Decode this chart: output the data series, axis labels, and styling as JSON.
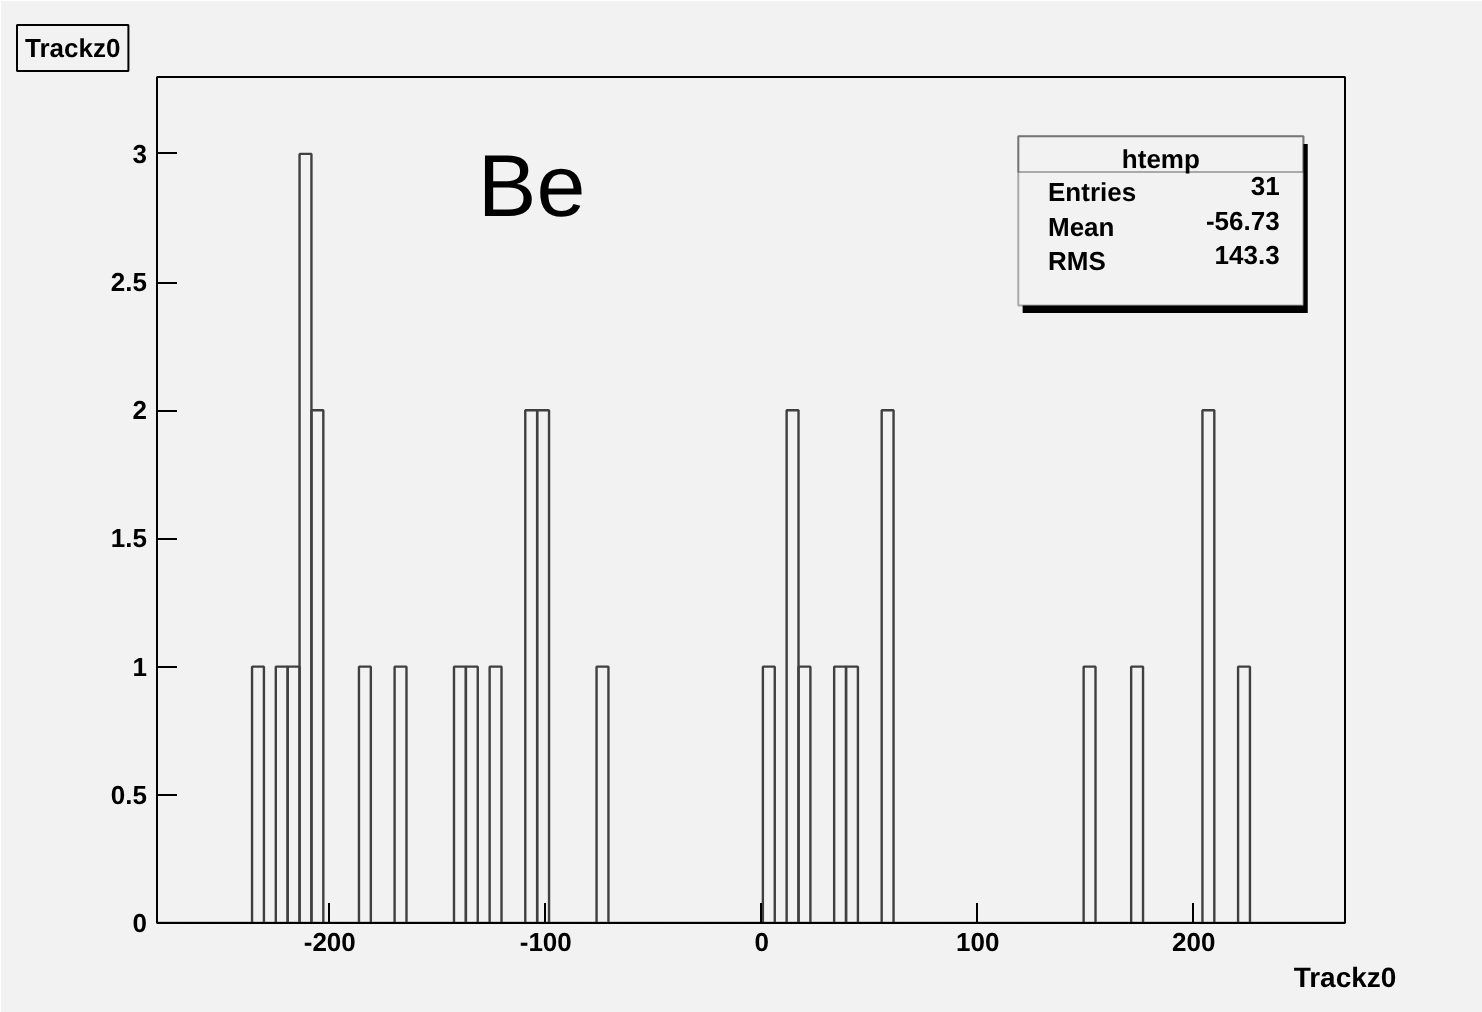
{
  "chart_data": {
    "type": "histogram",
    "title": "Trackz0",
    "xlabel": "Trackz0",
    "annotations": [
      "Be",
      "htemp",
      "Entries",
      "31",
      "Mean",
      "-56.73",
      "RMS",
      "143.3"
    ],
    "bins": [
      -280,
      -274.5,
      -269,
      -263.5,
      -258,
      -252.5,
      -247,
      -241.5,
      -236,
      -230.5,
      -225,
      -219.5,
      -214,
      -208.5,
      -203,
      -197.5,
      -192,
      -186.5,
      -181,
      -175.5,
      -170,
      -164.5,
      -159,
      -153.5,
      -148,
      -142.5,
      -137,
      -131.5,
      -126,
      -120.5,
      -115,
      -109.5,
      -104,
      -98.5,
      -93,
      -87.5,
      -82,
      -76.5,
      -71,
      -65.5,
      -60,
      -54.5,
      -49,
      -43.5,
      -38,
      -32.5,
      -27,
      -21.5,
      -16,
      -10.5,
      -5,
      0.5,
      6,
      11.5,
      17,
      22.5,
      28,
      33.5,
      39,
      44.5,
      50,
      55.5,
      61,
      66.5,
      72,
      77.5,
      83,
      88.5,
      94,
      99.5,
      105,
      110.5,
      116,
      121.5,
      127,
      132.5,
      138,
      143.5,
      149,
      154.5,
      160,
      165.5,
      171,
      176.5,
      182,
      187.5,
      193,
      198.5,
      204,
      209.5,
      215,
      220.5,
      226,
      231.5,
      237,
      242.5,
      248,
      253.5,
      259,
      264.5,
      270
    ],
    "values": [
      0,
      0,
      0,
      0,
      0,
      0,
      0,
      0,
      1,
      0,
      1,
      1,
      3,
      2,
      0,
      0,
      0,
      1,
      0,
      0,
      1,
      0,
      0,
      0,
      0,
      1,
      1,
      0,
      1,
      0,
      0,
      2,
      2,
      0,
      0,
      0,
      0,
      1,
      0,
      0,
      0,
      0,
      0,
      0,
      0,
      0,
      0,
      0,
      0,
      0,
      0,
      1,
      0,
      2,
      1,
      0,
      0,
      1,
      1,
      0,
      0,
      2,
      0,
      0,
      0,
      0,
      0,
      0,
      0,
      0,
      0,
      0,
      0,
      0,
      0,
      0,
      0,
      0,
      1,
      0,
      0,
      0,
      1,
      0,
      0,
      0,
      0,
      0,
      2,
      0,
      0,
      1,
      0,
      0,
      0,
      0,
      0,
      0,
      0,
      0
    ],
    "color": "#404040",
    "xlim": [
      -280,
      270
    ],
    "ylim": [
      0,
      3.3
    ],
    "xticks": [
      -200,
      -100,
      0,
      100,
      200
    ],
    "yticks": [
      0,
      0.5,
      1,
      1.5,
      2,
      2.5,
      3
    ],
    "grid": false
  }
}
